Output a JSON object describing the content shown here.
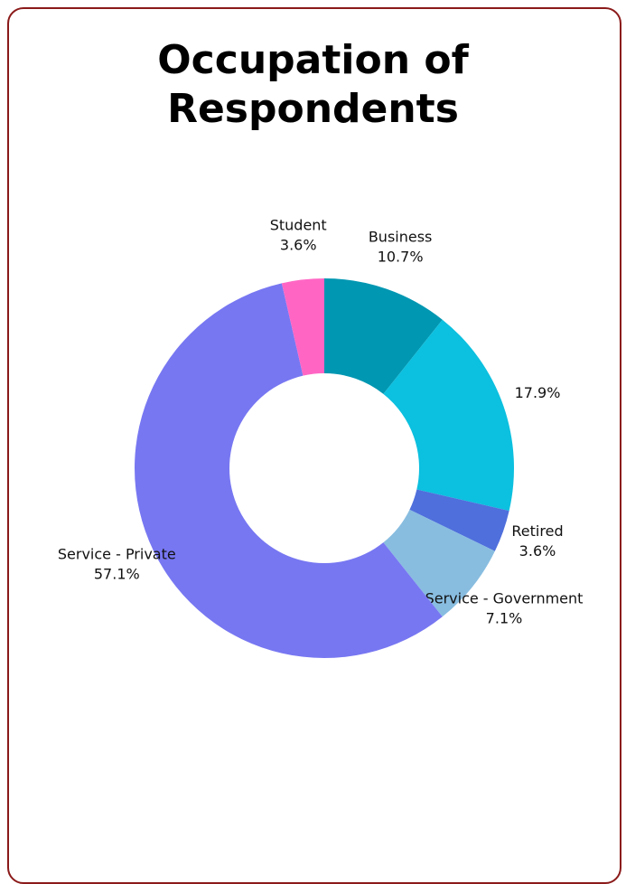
{
  "chart_data": {
    "type": "donut",
    "title": "Occupation of Respondents",
    "categories": [
      "Business",
      null,
      "Retired",
      "Service - Government",
      "Service - Private",
      "Student"
    ],
    "values": [
      10.7,
      17.9,
      3.6,
      7.1,
      57.1,
      3.6
    ],
    "value_labels": [
      "10.7%",
      "17.9%",
      "3.6%",
      "7.1%",
      "57.1%",
      "3.6%"
    ],
    "colors": [
      "#0097b2",
      "#0cc0df",
      "#4f6fdc",
      "#88bde0",
      "#7777f2",
      "#ff66c4"
    ]
  }
}
